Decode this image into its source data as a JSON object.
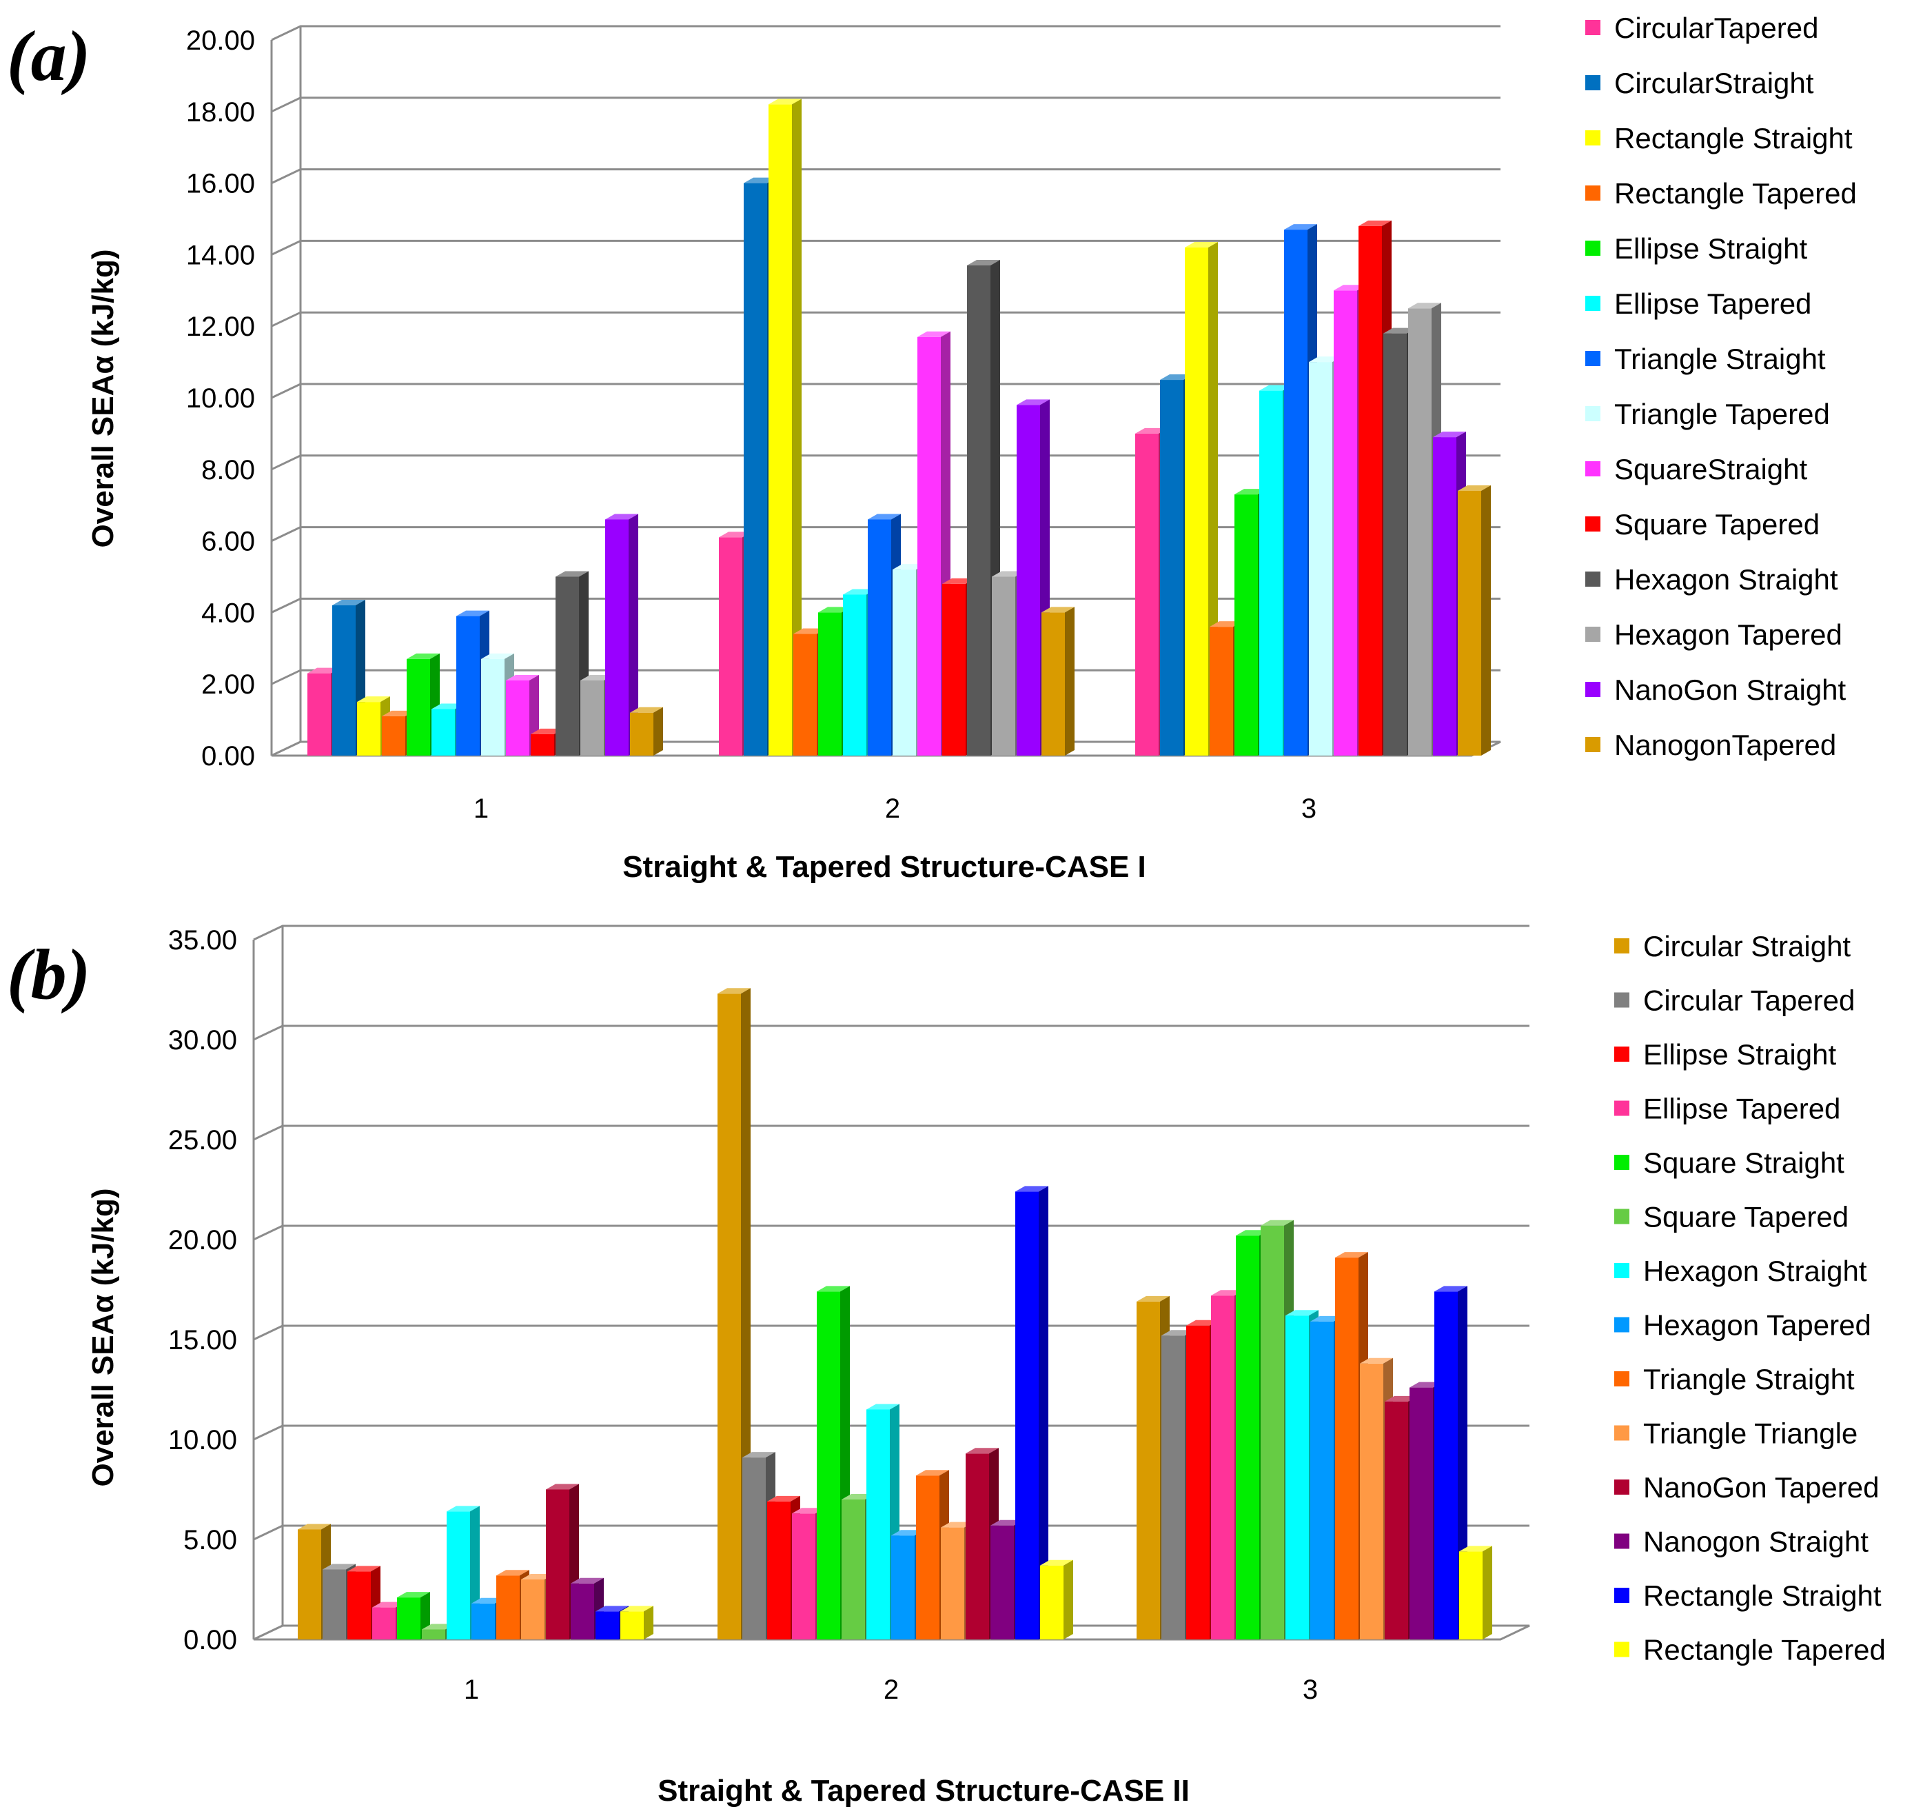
{
  "chart_data": [
    {
      "type": "bar",
      "panel_label": "(a)",
      "panel_label_parts": [
        "(",
        "a",
        ")"
      ],
      "ylabel": "Overall SEAα (kJ/kg)",
      "xlabel": "Straight & Tapered Structure-CASE I",
      "categories": [
        "1",
        "2",
        "3"
      ],
      "ylim": [
        0,
        20
      ],
      "ytick_step": 2,
      "yticks": [
        "0.00",
        "2.00",
        "4.00",
        "6.00",
        "8.00",
        "10.00",
        "12.00",
        "14.00",
        "16.00",
        "18.00",
        "20.00"
      ],
      "grid": true,
      "legend_position": "right",
      "series": [
        {
          "name": "CircularTapered",
          "color": "#ff3399",
          "values": [
            2.3,
            6.1,
            9.0
          ]
        },
        {
          "name": "CircularStraight",
          "color": "#0070c0",
          "values": [
            4.2,
            16.0,
            10.5
          ]
        },
        {
          "name": "Rectangle Straight",
          "color": "#ffff00",
          "values": [
            1.5,
            18.2,
            14.2
          ]
        },
        {
          "name": "Rectangle Tapered",
          "color": "#ff6600",
          "values": [
            1.1,
            3.4,
            3.6
          ]
        },
        {
          "name": "Ellipse Straight",
          "color": "#00ee00",
          "values": [
            2.7,
            4.0,
            7.3
          ]
        },
        {
          "name": "Ellipse Tapered",
          "color": "#00ffff",
          "values": [
            1.3,
            4.5,
            10.2
          ]
        },
        {
          "name": "Triangle Straight",
          "color": "#0066ff",
          "values": [
            3.9,
            6.6,
            14.7
          ]
        },
        {
          "name": "Triangle Tapered",
          "color": "#ccffff",
          "values": [
            2.7,
            5.2,
            11.0
          ]
        },
        {
          "name": "SquareStraight",
          "color": "#ff33ff",
          "values": [
            2.1,
            11.7,
            13.0
          ]
        },
        {
          "name": "Square Tapered",
          "color": "#ff0000",
          "values": [
            0.6,
            4.8,
            14.8
          ]
        },
        {
          "name": "Hexagon Straight",
          "color": "#595959",
          "values": [
            5.0,
            13.7,
            11.8
          ]
        },
        {
          "name": "Hexagon Tapered",
          "color": "#a6a6a6",
          "values": [
            2.1,
            5.0,
            12.5
          ]
        },
        {
          "name": "NanoGon Straight",
          "color": "#9900ff",
          "values": [
            6.6,
            9.8,
            8.9
          ]
        },
        {
          "name": "NanogonTapered",
          "color": "#d99b00",
          "values": [
            1.2,
            4.0,
            7.4
          ]
        }
      ]
    },
    {
      "type": "bar",
      "panel_label": "(b)",
      "panel_label_parts": [
        "(",
        "b",
        ")"
      ],
      "ylabel": "Overall SEAα (kJ/kg)",
      "xlabel": "Straight & Tapered Structure-CASE II",
      "categories": [
        "1",
        "2",
        "3"
      ],
      "ylim": [
        0,
        35
      ],
      "ytick_step": 5,
      "yticks": [
        "0.00",
        "5.00",
        "10.00",
        "15.00",
        "20.00",
        "25.00",
        "30.00",
        "35.00"
      ],
      "grid": true,
      "legend_position": "right",
      "series": [
        {
          "name": "Circular Straight",
          "color": "#d99b00",
          "values": [
            5.5,
            32.3,
            16.9
          ]
        },
        {
          "name": "Circular Tapered",
          "color": "#808080",
          "values": [
            3.5,
            9.1,
            15.2
          ]
        },
        {
          "name": "Ellipse Straight",
          "color": "#ff0000",
          "values": [
            3.4,
            6.9,
            15.7
          ]
        },
        {
          "name": "Ellipse Tapered",
          "color": "#ff3399",
          "values": [
            1.6,
            6.3,
            17.2
          ]
        },
        {
          "name": "Square Straight",
          "color": "#00ee00",
          "values": [
            2.1,
            17.4,
            20.2
          ]
        },
        {
          "name": "Square Tapered",
          "color": "#66cc44",
          "values": [
            0.5,
            7.0,
            20.7
          ]
        },
        {
          "name": "Hexagon Straight",
          "color": "#00ffff",
          "values": [
            6.4,
            11.5,
            16.2
          ]
        },
        {
          "name": "Hexagon Tapered",
          "color": "#0099ff",
          "values": [
            1.8,
            5.2,
            15.9
          ]
        },
        {
          "name": "Triangle Straight",
          "color": "#ff6600",
          "values": [
            3.2,
            8.2,
            19.1
          ]
        },
        {
          "name": "Triangle Triangle",
          "color": "#ff9944",
          "values": [
            3.0,
            5.6,
            13.8
          ]
        },
        {
          "name": "NanoGon Tapered",
          "color": "#b00030",
          "values": [
            7.5,
            9.3,
            11.9
          ]
        },
        {
          "name": "Nanogon Straight",
          "color": "#800080",
          "values": [
            2.8,
            5.7,
            12.6
          ]
        },
        {
          "name": "Rectangle Straight",
          "color": "#0000ff",
          "values": [
            1.4,
            22.4,
            17.4
          ]
        },
        {
          "name": "Rectangle Tapered",
          "color": "#ffff00",
          "values": [
            1.4,
            3.7,
            4.4
          ]
        }
      ]
    }
  ]
}
